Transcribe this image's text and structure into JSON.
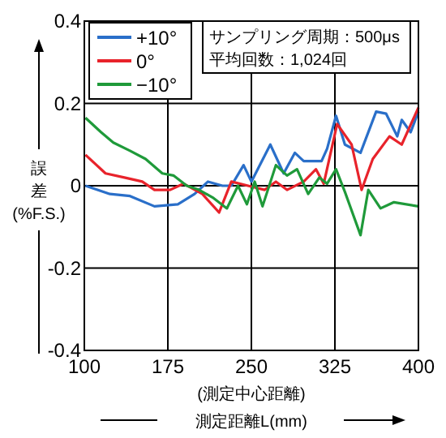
{
  "chart_data": {
    "type": "line",
    "xlabel": "測定距離L(mm)",
    "ylabel": "誤差(%F.S.)",
    "annotations": [
      "サンプリング周期：500μs",
      "平均回数：1,024回",
      "(測定中心距離)"
    ],
    "xlim": [
      100,
      400
    ],
    "xticks": [
      100,
      175,
      250,
      325,
      400
    ],
    "ylim": [
      -0.4,
      0.4
    ],
    "yticks": [
      -0.4,
      -0.2,
      0,
      0.2,
      0.4
    ],
    "grid": true,
    "legend": "top left",
    "series": [
      {
        "name": "+10°",
        "color": "#2a6fc9",
        "x": [
          101,
          123,
          141,
          163,
          184,
          199,
          211,
          224,
          232,
          243,
          250,
          267,
          279,
          289,
          297,
          313,
          318,
          326,
          334,
          348,
          362,
          371,
          381,
          385,
          393,
          400
        ],
        "values": [
          0,
          -0.02,
          -0.025,
          -0.05,
          -0.045,
          -0.02,
          0.01,
          0,
          0,
          0.05,
          0.01,
          0.1,
          0.03,
          0.08,
          0.06,
          0.06,
          0.09,
          0.17,
          0.1,
          0.08,
          0.18,
          0.175,
          0.12,
          0.16,
          0.13,
          0.18
        ]
      },
      {
        "name": "0°",
        "color": "#e8232b",
        "x": [
          101,
          119,
          136,
          152,
          163,
          177,
          189,
          206,
          221,
          232,
          247,
          262,
          272,
          282,
          297,
          308,
          315,
          327,
          340,
          349,
          359,
          374,
          385,
          400
        ],
        "values": [
          0.075,
          0.03,
          0.02,
          0.01,
          -0.01,
          -0.01,
          0.005,
          -0.02,
          -0.065,
          0.01,
          0,
          -0.01,
          0.01,
          -0.01,
          0.01,
          0.04,
          0.005,
          0.15,
          0.1,
          -0.01,
          0.065,
          0.12,
          0.1,
          0.19
        ]
      },
      {
        "name": "−10°",
        "color": "#1f9a3a",
        "x": [
          101,
          115,
          126,
          141,
          155,
          170,
          180,
          192,
          203,
          216,
          228,
          238,
          246,
          253,
          260,
          272,
          282,
          291,
          301,
          311,
          318,
          326,
          334,
          348,
          355,
          366,
          378,
          400
        ],
        "values": [
          0.165,
          0.13,
          0.105,
          0.085,
          0.065,
          0.03,
          0.025,
          0,
          -0.01,
          -0.03,
          -0.055,
          0,
          -0.045,
          0.01,
          -0.05,
          0.05,
          0.025,
          0.04,
          -0.02,
          0.02,
          0.005,
          0.04,
          -0.015,
          -0.12,
          -0.01,
          -0.055,
          -0.04,
          -0.05
        ]
      }
    ]
  }
}
